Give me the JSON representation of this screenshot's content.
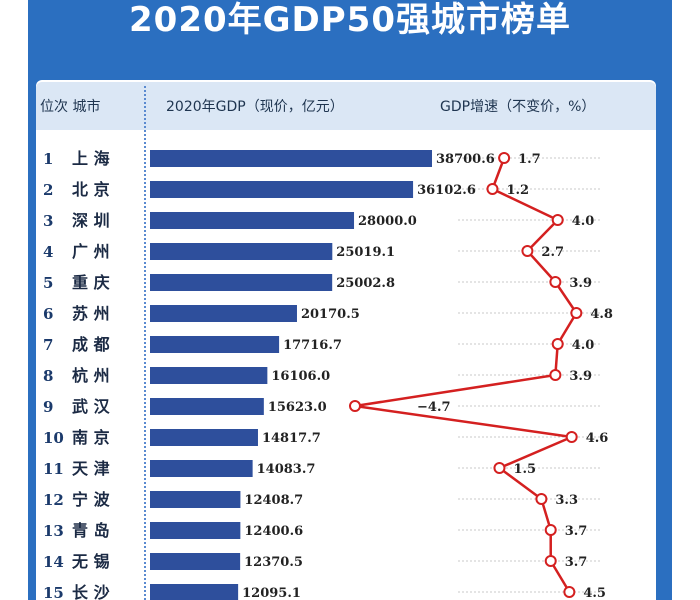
{
  "title": "2020年GDP50强城市榜单",
  "header": {
    "rank_city": "位次   城市",
    "gdp": "2020年GDP（现价，亿元）",
    "growth": "GDP增速（不变价，%）"
  },
  "colors": {
    "banner": "#2b6fc0",
    "bar": "#2e4f9c",
    "line": "#d42020",
    "marker_fill": "#ffffff"
  },
  "chart_data": {
    "type": "bar",
    "categories": [
      "上 海",
      "北 京",
      "深 圳",
      "广 州",
      "重 庆",
      "苏 州",
      "成 都",
      "杭 州",
      "武 汉",
      "南 京",
      "天 津",
      "宁 波",
      "青 岛",
      "无 锡",
      "长 沙"
    ],
    "ranks": [
      "1",
      "2",
      "3",
      "4",
      "5",
      "6",
      "7",
      "8",
      "9",
      "10",
      "11",
      "12",
      "13",
      "14",
      "15"
    ],
    "gdp_labels": [
      "38700.6",
      "36102.6",
      "28000.0",
      "25019.1",
      "25002.8",
      "20170.5",
      "17716.7",
      "16106.0",
      "15623.0",
      "14817.7",
      "14083.7",
      "12408.7",
      "12400.6",
      "12370.5",
      "12095.1"
    ],
    "gdp_values": [
      38700.6,
      36102.6,
      28000.0,
      25019.1,
      25002.8,
      20170.5,
      17716.7,
      16106.0,
      15623.0,
      14817.7,
      14083.7,
      12408.7,
      12400.6,
      12370.5,
      12095.1
    ],
    "growth_labels": [
      "1.7",
      "1.2",
      "4.0",
      "2.7",
      "3.9",
      "4.8",
      "4.0",
      "3.9",
      "−4.7",
      "4.6",
      "1.5",
      "3.3",
      "3.7",
      "3.7",
      "4.5"
    ],
    "growth_values": [
      1.7,
      1.2,
      4.0,
      2.7,
      3.9,
      4.8,
      4.0,
      3.9,
      -4.7,
      4.6,
      1.5,
      3.3,
      3.7,
      3.7,
      4.5
    ],
    "series": [
      {
        "name": "2020年GDP（现价，亿元）",
        "type": "bar"
      },
      {
        "name": "GDP增速（不变价，%）",
        "type": "line"
      }
    ]
  }
}
